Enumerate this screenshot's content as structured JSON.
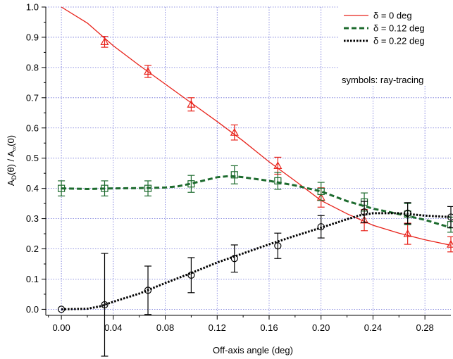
{
  "chart_data": {
    "type": "line",
    "xlabel": "Off-axis angle (deg)",
    "ylabel_main": "A",
    "ylabel_sub1": "D",
    "ylabel_mid": "(θ) / A",
    "ylabel_sub2": "∞",
    "ylabel_end": "(0)",
    "xlim": [
      -0.012,
      0.3
    ],
    "ylim": [
      -0.02,
      1.0
    ],
    "xticks": [
      "0.00",
      "0.04",
      "0.08",
      "0.12",
      "0.16",
      "0.20",
      "0.24",
      "0.28"
    ],
    "xtick_values": [
      0,
      0.04,
      0.08,
      0.12,
      0.16,
      0.2,
      0.24,
      0.28
    ],
    "yticks": [
      "0.0",
      "0.1",
      "0.2",
      "0.3",
      "0.4",
      "0.5",
      "0.6",
      "0.7",
      "0.8",
      "0.9",
      "1.0"
    ],
    "ytick_values": [
      0,
      0.1,
      0.2,
      0.3,
      0.4,
      0.5,
      0.6,
      0.7,
      0.8,
      0.9,
      1.0
    ],
    "grid": true,
    "legend_position": "top-right",
    "legend_note": "symbols: ray-tracing",
    "series": [
      {
        "name": "δ = 0 deg",
        "color": "#e8231b",
        "style": "solid",
        "marker": "triangle",
        "curve": [
          [
            0.0,
            1.0
          ],
          [
            0.02,
            0.947
          ],
          [
            0.04,
            0.872
          ],
          [
            0.06,
            0.807
          ],
          [
            0.08,
            0.745
          ],
          [
            0.1,
            0.683
          ],
          [
            0.12,
            0.621
          ],
          [
            0.14,
            0.557
          ],
          [
            0.16,
            0.488
          ],
          [
            0.18,
            0.425
          ],
          [
            0.2,
            0.36
          ],
          [
            0.22,
            0.316
          ],
          [
            0.24,
            0.278
          ],
          [
            0.26,
            0.252
          ],
          [
            0.28,
            0.23
          ],
          [
            0.3,
            0.212
          ]
        ],
        "points": [
          {
            "x": 0.0333,
            "y": 0.885,
            "err": 0.018
          },
          {
            "x": 0.0667,
            "y": 0.787,
            "err": 0.02
          },
          {
            "x": 0.1,
            "y": 0.678,
            "err": 0.022
          },
          {
            "x": 0.1333,
            "y": 0.585,
            "err": 0.025
          },
          {
            "x": 0.1667,
            "y": 0.475,
            "err": 0.028
          },
          {
            "x": 0.2,
            "y": 0.37,
            "err": 0.032
          },
          {
            "x": 0.2333,
            "y": 0.295,
            "err": 0.035
          },
          {
            "x": 0.2667,
            "y": 0.25,
            "err": 0.035
          },
          {
            "x": 0.3,
            "y": 0.215,
            "err": 0.025
          }
        ]
      },
      {
        "name": "δ = 0.12 deg",
        "color": "#1d6b2e",
        "style": "dashed",
        "marker": "square",
        "curve": [
          [
            0.0,
            0.4
          ],
          [
            0.02,
            0.398
          ],
          [
            0.04,
            0.4
          ],
          [
            0.06,
            0.401
          ],
          [
            0.08,
            0.403
          ],
          [
            0.09,
            0.407
          ],
          [
            0.1,
            0.416
          ],
          [
            0.12,
            0.437
          ],
          [
            0.13,
            0.441
          ],
          [
            0.14,
            0.437
          ],
          [
            0.16,
            0.425
          ],
          [
            0.18,
            0.41
          ],
          [
            0.2,
            0.39
          ],
          [
            0.22,
            0.358
          ],
          [
            0.24,
            0.333
          ],
          [
            0.26,
            0.315
          ],
          [
            0.28,
            0.296
          ],
          [
            0.3,
            0.27
          ]
        ],
        "points": [
          {
            "x": 0.0,
            "y": 0.4,
            "err": 0.025
          },
          {
            "x": 0.0333,
            "y": 0.4,
            "err": 0.025
          },
          {
            "x": 0.0667,
            "y": 0.4,
            "err": 0.025
          },
          {
            "x": 0.1,
            "y": 0.415,
            "err": 0.028
          },
          {
            "x": 0.1333,
            "y": 0.445,
            "err": 0.03
          },
          {
            "x": 0.1667,
            "y": 0.425,
            "err": 0.028
          },
          {
            "x": 0.2,
            "y": 0.39,
            "err": 0.03
          },
          {
            "x": 0.2333,
            "y": 0.355,
            "err": 0.03
          },
          {
            "x": 0.2667,
            "y": 0.315,
            "err": 0.035
          },
          {
            "x": 0.3,
            "y": 0.28,
            "err": 0.025
          }
        ]
      },
      {
        "name": "δ = 0.22 deg",
        "color": "#000000",
        "style": "dotted",
        "marker": "circle",
        "curve": [
          [
            0.0,
            0.0
          ],
          [
            0.02,
            0.002
          ],
          [
            0.03,
            0.01
          ],
          [
            0.04,
            0.025
          ],
          [
            0.06,
            0.052
          ],
          [
            0.08,
            0.087
          ],
          [
            0.1,
            0.12
          ],
          [
            0.12,
            0.155
          ],
          [
            0.14,
            0.185
          ],
          [
            0.16,
            0.215
          ],
          [
            0.18,
            0.243
          ],
          [
            0.2,
            0.27
          ],
          [
            0.22,
            0.298
          ],
          [
            0.23,
            0.311
          ],
          [
            0.24,
            0.318
          ],
          [
            0.26,
            0.318
          ],
          [
            0.28,
            0.31
          ],
          [
            0.3,
            0.305
          ]
        ],
        "points": [
          {
            "x": 0.0,
            "y": 0.0,
            "err": 0.0
          },
          {
            "x": 0.0333,
            "y": 0.015,
            "err": 0.17
          },
          {
            "x": 0.0667,
            "y": 0.063,
            "err": 0.08
          },
          {
            "x": 0.1,
            "y": 0.113,
            "err": 0.058
          },
          {
            "x": 0.1333,
            "y": 0.168,
            "err": 0.045
          },
          {
            "x": 0.1667,
            "y": 0.21,
            "err": 0.042
          },
          {
            "x": 0.2,
            "y": 0.273,
            "err": 0.037
          },
          {
            "x": 0.2333,
            "y": 0.322,
            "err": 0.035
          },
          {
            "x": 0.2667,
            "y": 0.318,
            "err": 0.035
          },
          {
            "x": 0.3,
            "y": 0.305,
            "err": 0.035
          }
        ]
      }
    ]
  }
}
